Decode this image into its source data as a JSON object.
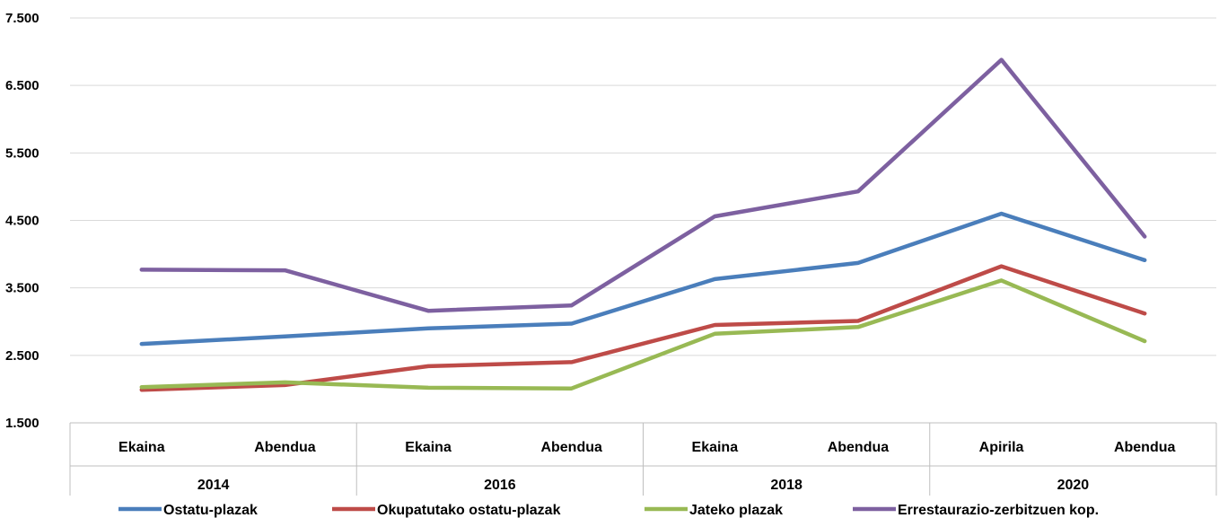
{
  "chart_data": {
    "type": "line",
    "groups": [
      {
        "label": "2014",
        "categories": [
          "Ekaina",
          "Abendua"
        ]
      },
      {
        "label": "2016",
        "categories": [
          "Ekaina",
          "Abendua"
        ]
      },
      {
        "label": "2018",
        "categories": [
          "Ekaina",
          "Abendua"
        ]
      },
      {
        "label": "2020",
        "categories": [
          "Apirila",
          "Abendua"
        ]
      }
    ],
    "categories": [
      "Ekaina",
      "Abendua",
      "Ekaina",
      "Abendua",
      "Ekaina",
      "Abendua",
      "Apirila",
      "Abendua"
    ],
    "yticks": [
      "1.500",
      "2.500",
      "3.500",
      "4.500",
      "5.500",
      "6.500",
      "7.500"
    ],
    "ylim": [
      1500,
      7500
    ],
    "grid": true,
    "legend_position": "bottom",
    "series": [
      {
        "name": "Ostatu-plazak",
        "color": "#4a7ebb",
        "values": [
          2670,
          2780,
          2900,
          2970,
          3630,
          3870,
          4600,
          3910
        ]
      },
      {
        "name": "Okupatutako ostatu-plazak",
        "color": "#be4b48",
        "values": [
          1990,
          2060,
          2340,
          2400,
          2950,
          3010,
          3820,
          3120
        ]
      },
      {
        "name": "Jateko plazak",
        "color": "#98b954",
        "values": [
          2030,
          2100,
          2020,
          2010,
          2820,
          2920,
          3610,
          2710
        ]
      },
      {
        "name": "Errestaurazio-zerbitzuen kop.",
        "color": "#7d60a0",
        "values": [
          3770,
          3760,
          3160,
          3240,
          4560,
          4930,
          6880,
          4260
        ]
      }
    ]
  }
}
